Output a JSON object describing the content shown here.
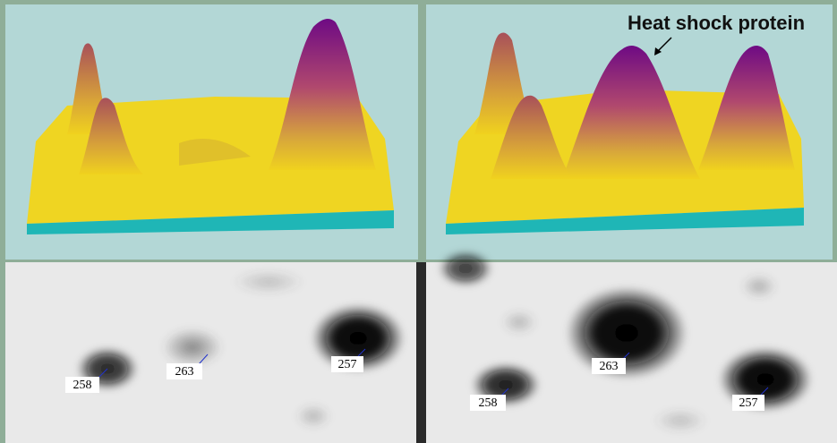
{
  "annotation": "Heat shock protein",
  "left_gel": {
    "labels": [
      "258",
      "263",
      "257"
    ]
  },
  "right_gel": {
    "labels": [
      "263",
      "258",
      "257"
    ]
  }
}
